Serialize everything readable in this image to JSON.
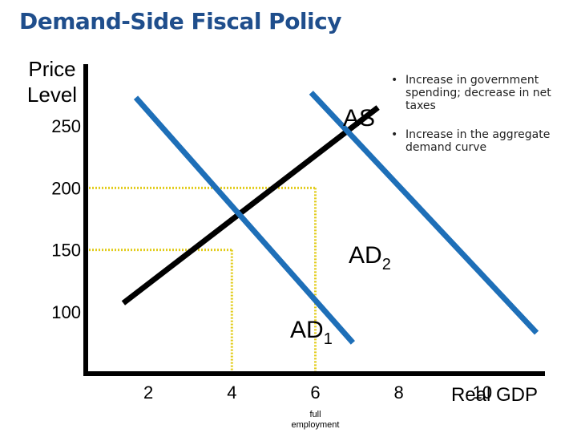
{
  "page": {
    "title": "Demand-Side Fiscal Policy",
    "notes": [
      "Increase in government spending; decrease in net taxes",
      "Increase in the aggregate demand curve"
    ]
  },
  "chart_data": {
    "type": "line",
    "title": "",
    "ylabel": "Price Level",
    "xlabel": "Real GDP",
    "x_ticks": [
      2,
      4,
      6,
      8,
      10
    ],
    "y_ticks": [
      100,
      150,
      200,
      250
    ],
    "xlim": [
      0.5,
      11.5
    ],
    "ylim": [
      50,
      300
    ],
    "grid": false,
    "series": [
      {
        "name": "AS",
        "label_main": "AS",
        "label_sub": "",
        "color": "#000000",
        "points": [
          [
            1.4,
            107
          ],
          [
            7.5,
            265
          ]
        ]
      },
      {
        "name": "AD1",
        "label_main": "AD",
        "label_sub": "1",
        "color": "#1e6fb8",
        "points": [
          [
            1.7,
            273
          ],
          [
            6.9,
            75
          ]
        ]
      },
      {
        "name": "AD2",
        "label_main": "AD",
        "label_sub": "2",
        "color": "#1e6fb8",
        "points": [
          [
            5.9,
            277
          ],
          [
            11.3,
            83
          ]
        ]
      }
    ],
    "guides": [
      {
        "x": 4,
        "y": 150,
        "color": "#e2cc1a"
      },
      {
        "x": 6,
        "y": 200,
        "color": "#e2cc1a"
      }
    ],
    "annotations": [
      {
        "text": "full employment",
        "x": 6
      }
    ],
    "colors": {
      "axis": "#000000",
      "ad": "#1e6fb8",
      "as": "#000000",
      "guide": "#e2cc1a"
    }
  }
}
